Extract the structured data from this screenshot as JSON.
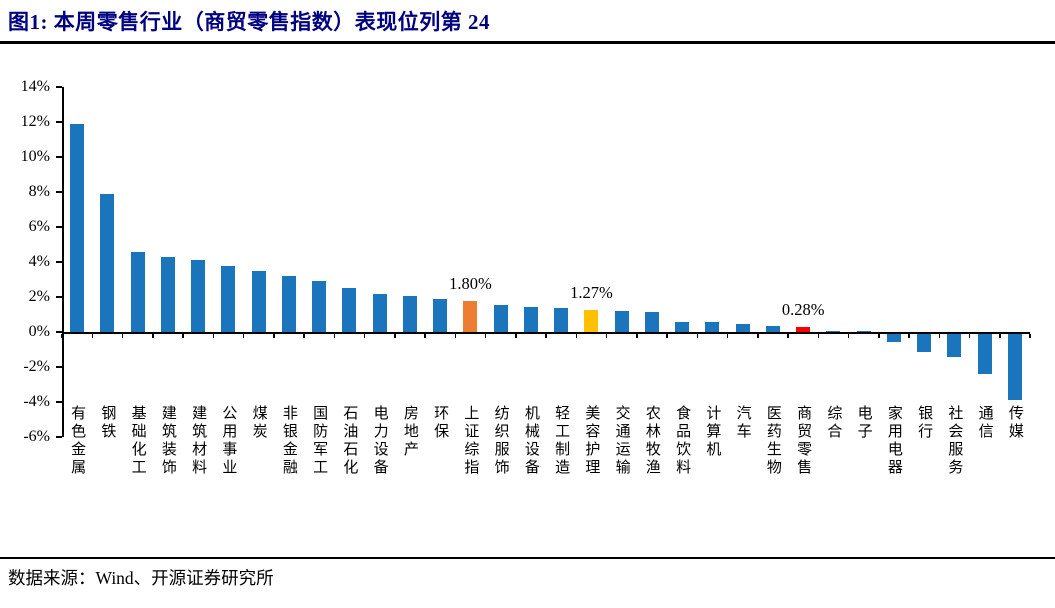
{
  "figure": {
    "title": "图1:  本周零售行业（商贸零售指数）表现位列第 24",
    "source": "数据来源：Wind、开源证券研究所"
  },
  "colors": {
    "bar_default": "#1B75BC",
    "highlight_orange": "#ED7D31",
    "highlight_yellow": "#FFC000",
    "highlight_red": "#FF0000",
    "title_navy": "#000080",
    "axis_black": "#000000"
  },
  "chart_data": {
    "type": "bar",
    "title": "本周零售行业（商贸零售指数）表现位列第 24",
    "xlabel": "",
    "ylabel": "",
    "ylim": [
      -6,
      14
    ],
    "ytick_step": 2,
    "ytick_labels": [
      "14%",
      "12%",
      "10%",
      "8%",
      "6%",
      "4%",
      "2%",
      "0%",
      "-2%",
      "-4%",
      "-6%"
    ],
    "grid": false,
    "legend_position": "none",
    "categories": [
      "有色金属",
      "钢铁",
      "基础化工",
      "建筑装饰",
      "建筑材料",
      "公用事业",
      "煤炭",
      "非银金融",
      "国防军工",
      "石油石化",
      "电力设备",
      "房地产",
      "环保",
      "上证综指",
      "纺织服饰",
      "机械设备",
      "轻工制造",
      "美容护理",
      "交通运输",
      "农林牧渔",
      "食品饮料",
      "计算机",
      "汽车",
      "医药生物",
      "商贸零售",
      "综合",
      "电子",
      "家用电器",
      "银行",
      "社会服务",
      "通信",
      "传媒"
    ],
    "values": [
      11.9,
      7.9,
      4.6,
      4.3,
      4.1,
      3.8,
      3.5,
      3.2,
      2.9,
      2.5,
      2.15,
      2.05,
      1.9,
      1.8,
      1.55,
      1.45,
      1.35,
      1.27,
      1.2,
      1.15,
      0.6,
      0.6,
      0.45,
      0.35,
      0.28,
      0.08,
      0.05,
      -0.5,
      -1.05,
      -1.35,
      -2.3,
      -3.8
    ],
    "highlights": [
      {
        "category": "上证综指",
        "color": "#ED7D31",
        "annotation": "1.80%"
      },
      {
        "category": "美容护理",
        "color": "#FFC000",
        "annotation": "1.27%"
      },
      {
        "category": "商贸零售",
        "color": "#FF0000",
        "annotation": "0.28%"
      }
    ]
  }
}
